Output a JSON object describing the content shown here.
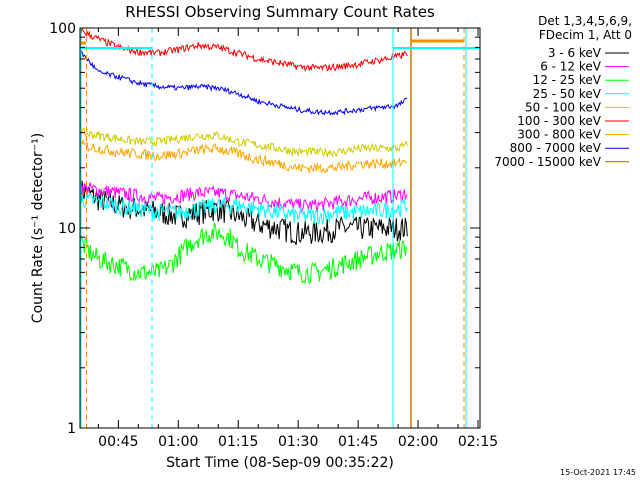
{
  "chart_data": {
    "type": "line",
    "title": "RHESSI Observing Summary Count Rates",
    "xlabel": "Start Time (08-Sep-09 00:35:22)",
    "ylabel": "Count Rate (s⁻¹ detector⁻¹)",
    "yscale": "log",
    "ylim": [
      1,
      100
    ],
    "xlim_minutes": [
      35.4,
      135.5
    ],
    "x_ticks": [
      {
        "label": "00:45",
        "minute": 45
      },
      {
        "label": "01:00",
        "minute": 60
      },
      {
        "label": "01:15",
        "minute": 75
      },
      {
        "label": "01:30",
        "minute": 90
      },
      {
        "label": "01:45",
        "minute": 105
      },
      {
        "label": "02:00",
        "minute": 120
      },
      {
        "label": "02:15",
        "minute": 135
      }
    ],
    "y_ticks": [
      {
        "label": "1",
        "value": 1
      },
      {
        "label": "10",
        "value": 10
      },
      {
        "label": "100",
        "value": 100
      }
    ],
    "legend": {
      "placement": "right",
      "header_line1": "Det 1,3,4,5,6,9,",
      "header_line2": "FDecim 1, Att 0"
    },
    "series": [
      {
        "name": "3 - 6 keV",
        "color": "#000000",
        "noise": 0.14,
        "x": [
          35.7,
          40,
          45,
          50,
          55,
          60,
          65,
          70,
          75,
          80,
          85,
          90,
          95,
          100,
          105,
          115,
          117.3
        ],
        "y": [
          15.5,
          14,
          13,
          12.5,
          12,
          11.5,
          12,
          12.5,
          11.5,
          10.5,
          10,
          9.5,
          9.5,
          10,
          10,
          10,
          10
        ]
      },
      {
        "name": "6 - 12 keV",
        "color": "#ff00ff",
        "noise": 0.08,
        "x": [
          35.7,
          40,
          45,
          50,
          55,
          60,
          65,
          70,
          75,
          80,
          85,
          90,
          95,
          100,
          105,
          115,
          117.3
        ],
        "y": [
          16,
          15.5,
          15,
          14.5,
          14,
          14.5,
          15,
          15,
          14.5,
          14,
          13.5,
          13,
          13,
          13.5,
          14,
          14.5,
          15
        ]
      },
      {
        "name": "12 - 25 keV",
        "color": "#00ff00",
        "noise": 0.12,
        "x": [
          35.7,
          38,
          40,
          45,
          50,
          55,
          58,
          62,
          65,
          68,
          70,
          73,
          75,
          80,
          85,
          90,
          95,
          100,
          105,
          110,
          117.3
        ],
        "y": [
          8.5,
          7.5,
          7,
          6.5,
          6,
          6,
          6.5,
          8,
          9,
          9.5,
          9.5,
          9,
          8,
          7,
          6.5,
          6,
          6,
          6.5,
          7,
          7.5,
          8
        ]
      },
      {
        "name": "25 - 50 keV",
        "color": "#00ffff",
        "noise": 0.1,
        "x": [
          35.7,
          40,
          45,
          50,
          55,
          60,
          65,
          70,
          75,
          80,
          85,
          90,
          95,
          100,
          105,
          115,
          117.3
        ],
        "y": [
          14,
          13.5,
          13,
          12.5,
          12,
          12,
          12.5,
          13,
          13,
          12.5,
          12,
          11.5,
          11.5,
          12,
          12,
          12.5,
          13
        ]
      },
      {
        "name": "50 - 100 keV",
        "color": "#cccc00",
        "noise": 0.05,
        "x": [
          35.7,
          40,
          45,
          50,
          55,
          60,
          65,
          70,
          75,
          80,
          85,
          90,
          95,
          100,
          105,
          115,
          117.3
        ],
        "y": [
          30,
          29,
          28,
          27,
          27,
          28,
          29,
          29,
          27,
          26,
          25,
          24,
          24,
          24,
          25,
          25,
          26
        ]
      },
      {
        "name": "100 - 300 keV",
        "color": "#ff0000",
        "noise": 0.04,
        "x": [
          35.7,
          38,
          40,
          45,
          50,
          55,
          60,
          65,
          70,
          75,
          80,
          85,
          90,
          95,
          100,
          105,
          110,
          115,
          117.3
        ],
        "y": [
          97,
          92,
          88,
          80,
          76,
          75,
          78,
          82,
          80,
          75,
          70,
          67,
          64,
          63,
          64,
          66,
          69,
          72,
          75
        ]
      },
      {
        "name": "300 - 800 keV",
        "color": "#ffa500",
        "noise": 0.06,
        "x": [
          35.7,
          40,
          45,
          50,
          55,
          60,
          65,
          70,
          75,
          80,
          85,
          90,
          95,
          100,
          105,
          115,
          117.3
        ],
        "y": [
          26,
          25,
          24,
          23.5,
          23,
          23.5,
          24.5,
          25,
          23.5,
          22,
          21,
          20,
          20,
          20,
          21,
          21,
          22
        ]
      },
      {
        "name": "800 - 7000 keV",
        "color": "#0000ff",
        "noise": 0.03,
        "x": [
          35.7,
          38,
          40,
          45,
          50,
          55,
          60,
          65,
          70,
          75,
          80,
          85,
          90,
          95,
          100,
          105,
          110,
          115,
          117.3
        ],
        "y": [
          75,
          67,
          60,
          57,
          53,
          51,
          50,
          51,
          50,
          47,
          43,
          41,
          39,
          38,
          38,
          39,
          40,
          41,
          44
        ]
      },
      {
        "name": "7000 - 15000 keV",
        "color": "#996600",
        "noise": 0,
        "x": [],
        "y": []
      }
    ]
  },
  "timestamp": "15-Oct-2021 17:45"
}
